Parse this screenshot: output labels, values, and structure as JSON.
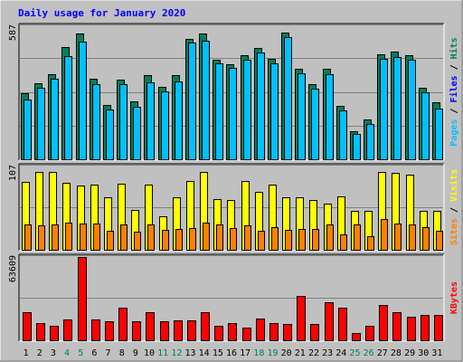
{
  "chart_data": [
    {
      "type": "bar",
      "title": "Daily usage for January 2020",
      "ylabel_parts": [
        "Pages",
        "Files",
        "Hits"
      ],
      "y_max_label": "587",
      "categories": [
        "1",
        "2",
        "3",
        "4",
        "5",
        "6",
        "7",
        "8",
        "9",
        "10",
        "11",
        "12",
        "13",
        "14",
        "15",
        "16",
        "17",
        "18",
        "19",
        "20",
        "21",
        "22",
        "23",
        "24",
        "25",
        "26",
        "27",
        "28",
        "29",
        "30",
        "31"
      ],
      "weekend_days": [
        "4",
        "5",
        "11",
        "12",
        "18",
        "19",
        "25",
        "26"
      ],
      "ylim": [
        0,
        587
      ],
      "series": [
        {
          "name": "Hits",
          "values": [
            290,
            335,
            375,
            495,
            555,
            355,
            240,
            350,
            255,
            370,
            320,
            370,
            530,
            555,
            440,
            420,
            460,
            490,
            445,
            560,
            400,
            330,
            400,
            235,
            125,
            175,
            465,
            475,
            460,
            315,
            250
          ]
        },
        {
          "name": "Files",
          "values": [
            265,
            315,
            355,
            455,
            520,
            330,
            220,
            330,
            230,
            340,
            300,
            345,
            515,
            525,
            425,
            405,
            440,
            470,
            425,
            540,
            380,
            310,
            375,
            215,
            110,
            155,
            445,
            450,
            440,
            295,
            225
          ]
        }
      ]
    },
    {
      "type": "bar",
      "ylabel_parts": [
        "Sites",
        "Visits"
      ],
      "y_max_label": "107",
      "ylim": [
        0,
        107
      ],
      "series": [
        {
          "name": "Visits",
          "values": [
            87,
            100,
            100,
            86,
            83,
            84,
            67,
            85,
            51,
            84,
            43,
            67,
            88,
            100,
            65,
            64,
            88,
            74,
            84,
            67,
            68,
            64,
            59,
            69,
            50,
            50,
            100,
            99,
            97,
            50,
            50
          ]
        },
        {
          "name": "Sites",
          "values": [
            33,
            31,
            32,
            35,
            34,
            34,
            25,
            33,
            23,
            32,
            26,
            27,
            28,
            35,
            32,
            28,
            31,
            24,
            29,
            26,
            27,
            27,
            33,
            20,
            32,
            18,
            40,
            34,
            32,
            29,
            25
          ]
        }
      ]
    },
    {
      "type": "bar",
      "ylabel_parts": [
        "KBytes"
      ],
      "y_max_label": "63609",
      "ylim": [
        0,
        63609
      ],
      "series": [
        {
          "name": "KBytes",
          "values": [
            21300,
            12900,
            11200,
            15900,
            63609,
            16100,
            14800,
            24600,
            14600,
            21600,
            14800,
            14900,
            15300,
            21300,
            11000,
            13000,
            9900,
            16300,
            12800,
            12600,
            33600,
            12300,
            28800,
            25100,
            5600,
            11200,
            26700,
            21300,
            17900,
            19400,
            19400
          ]
        }
      ]
    }
  ],
  "colors": {
    "background": "#C0C0C0",
    "title": "#0000FF",
    "hits": "#00805C",
    "files": "#0000FF",
    "pages": "#00C0FF",
    "visits": "#FFFF00",
    "sites": "#FF8000",
    "kbytes": "#FF0000",
    "weekend_label": "#00805C",
    "weekday_label": "#000000",
    "bar_outline": "#000000",
    "grid": "#808080"
  }
}
